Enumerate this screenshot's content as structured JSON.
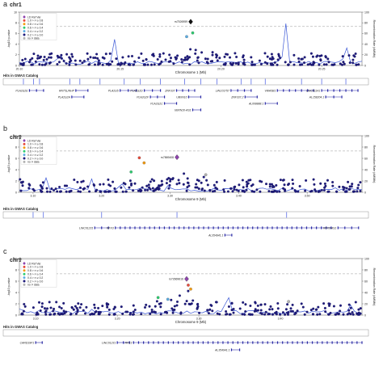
{
  "legend_items": [
    {
      "label": "LD Ref Var",
      "color": "#8e44ad",
      "shape": "diamond"
    },
    {
      "label": "1.0 > r² ≥ 0.8",
      "color": "#e74c3c",
      "shape": "circle"
    },
    {
      "label": "0.8 > r² ≥ 0.6",
      "color": "#f39c12",
      "shape": "circle"
    },
    {
      "label": "0.6 > r² ≥ 0.4",
      "color": "#2ecc71",
      "shape": "circle"
    },
    {
      "label": "0.4 > r² ≥ 0.2",
      "color": "#5dade2",
      "shape": "circle"
    },
    {
      "label": "0.2 > r² ≥ 0.0",
      "color": "#1f1c7c",
      "shape": "circle"
    },
    {
      "label": "no r² data",
      "color": "#b3b3b3",
      "shape": "circle"
    }
  ],
  "gwas_label": "Hits in GWAS Catalog",
  "chart_data": [
    {
      "type": "scatter",
      "panel": "a",
      "chrom_label": "chr1",
      "ylabel": "-log10 p-value",
      "ylabel2": "Recombination Rate (cM/Mb)",
      "xlabel": "Chromosome 1 (Mb)",
      "xlim": [
        20.1,
        20.27
      ],
      "ylim": [
        0,
        10
      ],
      "ylim2": [
        0,
        100
      ],
      "yticks": [
        0,
        2,
        4,
        6,
        8,
        10
      ],
      "yticks2": [
        0,
        20,
        40,
        60,
        80,
        100
      ],
      "xticks": [
        20.1,
        20.15,
        20.2,
        20.25
      ],
      "threshold": 7.3,
      "lead": {
        "label": "rs7526959",
        "x": 20.185,
        "y": 8.2
      },
      "highlight_points": [
        {
          "x": 20.186,
          "y": 6.1,
          "r2": "0.6-0.4"
        },
        {
          "x": 20.183,
          "y": 5.4,
          "r2": "0.4-0.2"
        }
      ],
      "recomb_spikes": [
        {
          "x": 20.147,
          "h": 55
        },
        {
          "x": 20.232,
          "h": 88
        },
        {
          "x": 20.262,
          "h": 42
        },
        {
          "x": 20.12,
          "h": 28
        }
      ],
      "gwas_hits": [
        20.102,
        20.107,
        20.11,
        20.125,
        20.13,
        20.14,
        20.152,
        20.16,
        20.17,
        20.182,
        20.19,
        20.198,
        20.21,
        20.215,
        20.222,
        20.24,
        20.25,
        20.262
      ],
      "genes": [
        {
          "name": "PLA2G2E",
          "x1": 20.105,
          "x2": 20.112,
          "row": 0
        },
        {
          "name": "RNT5L/NHP",
          "x1": 20.128,
          "x2": 20.134,
          "row": 0
        },
        {
          "name": "PLA2G5",
          "x1": 20.15,
          "x2": 20.158,
          "row": 0
        },
        {
          "name": "PLA2G2D",
          "x1": 20.162,
          "x2": 20.17,
          "row": 0
        },
        {
          "name": "ZNF337",
          "x1": 20.178,
          "x2": 20.187,
          "row": 0
        },
        {
          "name": "LINC01757",
          "x1": 20.205,
          "x2": 20.215,
          "row": 0
        },
        {
          "name": "VWA5B1",
          "x1": 20.228,
          "x2": 20.246,
          "row": 0
        },
        {
          "name": "LINC01141",
          "x1": 20.25,
          "x2": 20.268,
          "row": 0
        },
        {
          "name": "PLA2G2A",
          "x1": 20.126,
          "x2": 20.132,
          "row": 1
        },
        {
          "name": "PLA2G2F",
          "x1": 20.165,
          "x2": 20.172,
          "row": 1
        },
        {
          "name": "UBXN10",
          "x1": 20.184,
          "x2": 20.19,
          "row": 1
        },
        {
          "name": "ZNF337.2",
          "x1": 20.212,
          "x2": 20.218,
          "row": 1
        },
        {
          "name": "AL158204.1",
          "x1": 20.252,
          "x2": 20.26,
          "row": 1
        },
        {
          "name": "PLA2G2C",
          "x1": 20.172,
          "x2": 20.178,
          "row": 2
        },
        {
          "name": "AL008888.1",
          "x1": 20.222,
          "x2": 20.228,
          "row": 2
        },
        {
          "name": "UBXN10-AS1",
          "x1": 20.186,
          "x2": 20.19,
          "row": 3
        }
      ],
      "cluster_seed": 1
    },
    {
      "type": "scatter",
      "panel": "b",
      "chrom_label": "chr9",
      "ylabel": "-log10 p-value",
      "ylabel2": "Recombination Rate (cM/Mb)",
      "xlabel": "Chromosome 9 (Mb)",
      "xlim": [
        3.08,
        3.58
      ],
      "ylim": [
        0,
        10
      ],
      "ylim2": [
        0,
        100
      ],
      "yticks": [
        0,
        2,
        4,
        6,
        8,
        10
      ],
      "yticks2": [
        0,
        20,
        40,
        60,
        80,
        100
      ],
      "xticks": [
        3.1,
        3.2,
        3.3,
        3.4,
        3.5
      ],
      "threshold": 7.3,
      "lead": {
        "label": "rs7869408",
        "x": 3.31,
        "y": 6.2
      },
      "highlight_points": [
        {
          "x": 3.255,
          "y": 6.1,
          "r2": "1.0-0.8"
        },
        {
          "x": 3.262,
          "y": 5.2,
          "r2": "0.8-0.6"
        },
        {
          "x": 3.243,
          "y": 3.6,
          "r2": "0.6-0.4"
        },
        {
          "x": 3.352,
          "y": 3.1,
          "r2": "no"
        }
      ],
      "recomb_spikes": [
        {
          "x": 3.118,
          "h": 30
        },
        {
          "x": 3.185,
          "h": 26
        },
        {
          "x": 3.228,
          "h": 22
        },
        {
          "x": 3.298,
          "h": 15
        }
      ],
      "gwas_hits": [
        3.1,
        3.115,
        3.2,
        3.31,
        3.47
      ],
      "genes": [
        {
          "name": "LINC01231",
          "x1": 3.19,
          "x2": 3.21,
          "row": 0
        },
        {
          "name": "RFX3",
          "x1": 3.22,
          "x2": 3.535,
          "row": 0
        },
        {
          "name": "RFX3-AS1",
          "x1": 3.545,
          "x2": 3.575,
          "row": 0
        },
        {
          "name": "AL354941.1",
          "x1": 3.38,
          "x2": 3.39,
          "row": 1
        }
      ],
      "cluster_seed": 2
    },
    {
      "type": "scatter",
      "panel": "c",
      "chrom_label": "chr9",
      "ylabel": "-log10 p-value",
      "ylabel2": "Recombination Rate (cM/Mb)",
      "xlabel": "Chromosome 9 (Mb)",
      "xlim": [
        3.08,
        3.5
      ],
      "ylim": [
        0,
        10
      ],
      "ylim2": [
        0,
        100
      ],
      "yticks": [
        0,
        2,
        4,
        6,
        8,
        10
      ],
      "yticks2": [
        0,
        20,
        40,
        60,
        80,
        100
      ],
      "xticks": [
        3.1,
        3.2,
        3.3,
        3.4
      ],
      "threshold": 7.3,
      "lead": {
        "label": "rs72669616",
        "x": 3.285,
        "y": 6.4
      },
      "highlight_points": [
        {
          "x": 3.287,
          "y": 5.3,
          "r2": "1.0-0.8"
        },
        {
          "x": 3.29,
          "y": 4.6,
          "r2": "0.8-0.6"
        },
        {
          "x": 3.25,
          "y": 3.1,
          "r2": "0.6-0.4"
        },
        {
          "x": 3.262,
          "y": 2.8,
          "r2": "0.4-0.2"
        },
        {
          "x": 3.41,
          "y": 2.4,
          "r2": "no"
        }
      ],
      "recomb_spikes": [
        {
          "x": 3.082,
          "h": 18
        },
        {
          "x": 3.335,
          "h": 46
        },
        {
          "x": 3.485,
          "h": 22
        },
        {
          "x": 3.17,
          "h": 14
        }
      ],
      "gwas_hits": [],
      "genes": [
        {
          "name": "CARD19P1",
          "x1": 3.1,
          "x2": 3.108,
          "row": 0
        },
        {
          "name": "LINC01231",
          "x1": 3.2,
          "x2": 3.215,
          "row": 0
        },
        {
          "name": "RFX3",
          "x1": 3.22,
          "x2": 3.5,
          "row": 0
        },
        {
          "name": "AL354941.1",
          "x1": 3.34,
          "x2": 3.35,
          "row": 1
        }
      ],
      "cluster_seed": 3
    }
  ]
}
